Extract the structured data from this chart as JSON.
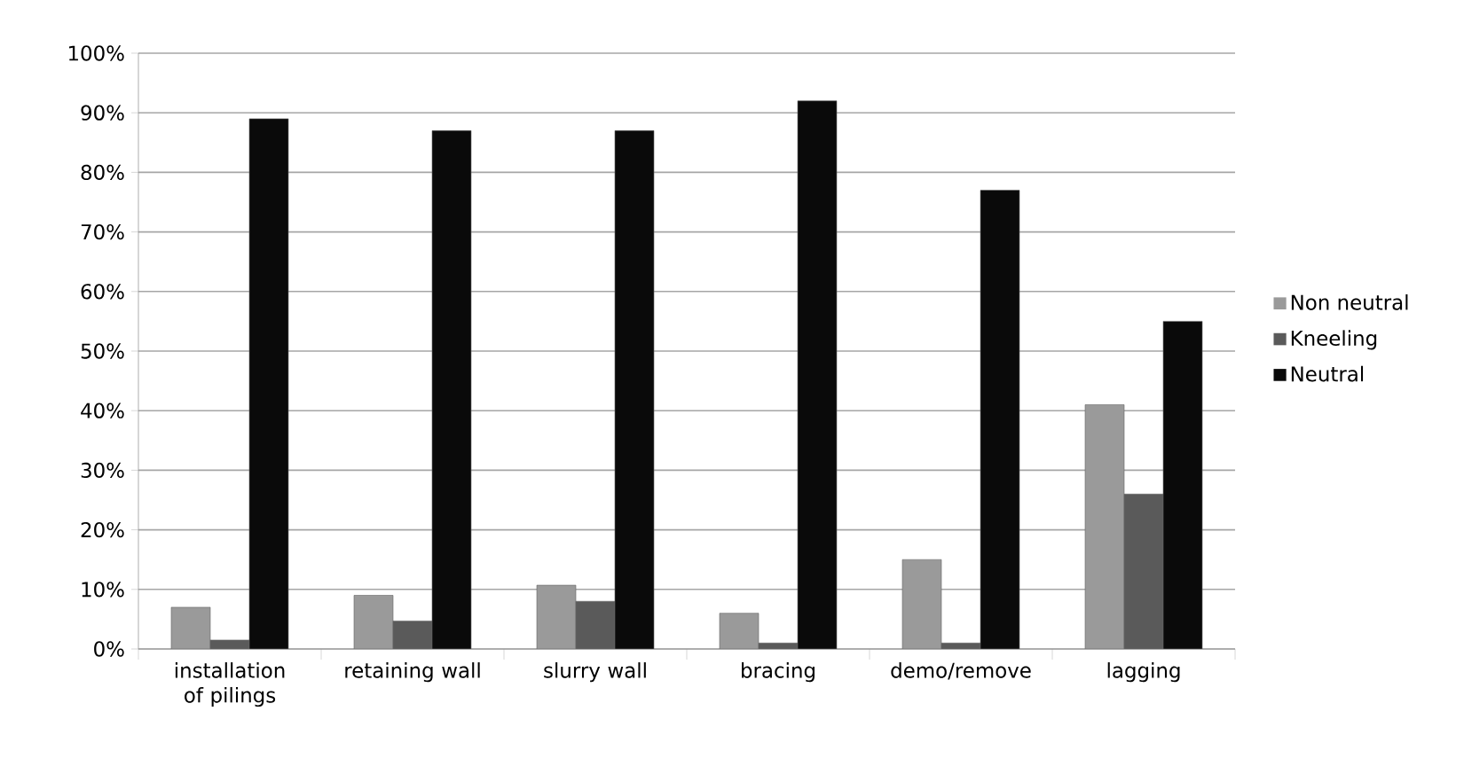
{
  "chart_data": {
    "type": "bar",
    "categories": [
      "installation of pilings",
      "retaining wall",
      "slurry wall",
      "bracing",
      "demo/remove",
      "lagging"
    ],
    "series": [
      {
        "name": "Non neutral",
        "color": "#9a9a9a",
        "values": [
          7,
          9,
          10.7,
          6,
          15,
          41
        ]
      },
      {
        "name": "Kneeling",
        "color": "#5a5a5a",
        "values": [
          1.5,
          4.7,
          8,
          1,
          1,
          26
        ]
      },
      {
        "name": "Neutral",
        "color": "#0a0a0a",
        "values": [
          89,
          87,
          87,
          92,
          77,
          55
        ]
      }
    ],
    "ylim": [
      0,
      100
    ],
    "yticks": [
      {
        "value": 0,
        "label": "0%"
      },
      {
        "value": 10,
        "label": "10%"
      },
      {
        "value": 20,
        "label": "20%"
      },
      {
        "value": 30,
        "label": "30%"
      },
      {
        "value": 40,
        "label": "40%"
      },
      {
        "value": 50,
        "label": "50%"
      },
      {
        "value": 60,
        "label": "60%"
      },
      {
        "value": 70,
        "label": "70%"
      },
      {
        "value": 80,
        "label": "80%"
      },
      {
        "value": 90,
        "label": "90%"
      },
      {
        "value": 100,
        "label": "100%"
      }
    ],
    "grid": "y",
    "legend": "right"
  }
}
